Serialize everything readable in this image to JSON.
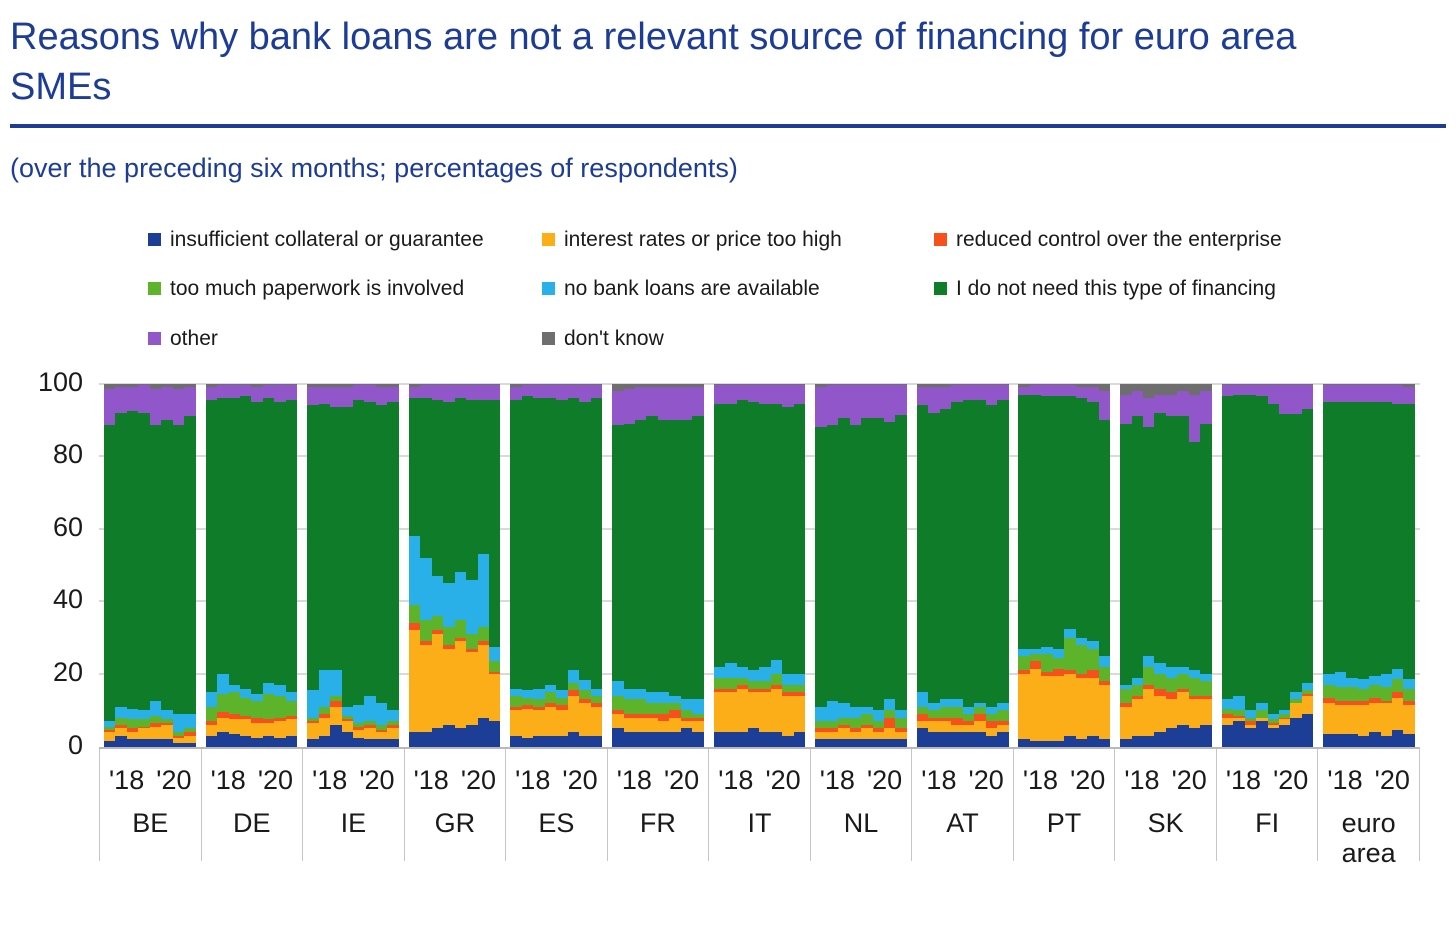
{
  "header": {
    "title_line1": "Reasons why bank loans are not a relevant source of financing for euro area",
    "title_line2": "SMEs",
    "subtitle": "(over the preceding six months; percentages of respondents)"
  },
  "colors": {
    "accent_blue": "#1C3C96",
    "axis_text": "#1A1A1A",
    "gridline": "#D9D9D9",
    "band_border": "#C6C6C6"
  },
  "chart_data": {
    "type": "bar",
    "stacked": true,
    "title": "Reasons why bank loans are not a relevant source of financing for euro area SMEs",
    "subtitle": "(over the preceding six months; percentages of respondents)",
    "ylabel": "percentages of respondents",
    "ylim": [
      0,
      100
    ],
    "yticks": [
      0,
      20,
      40,
      60,
      80,
      100
    ],
    "grid": "horizontal",
    "legend_position": "top",
    "legend_columns": 3,
    "bars_per_group": 8,
    "bar_axis_tick_labels": [
      "'18",
      "'20"
    ],
    "series": [
      {
        "name": "insufficient collateral or guarantee",
        "color": "#1C3E96"
      },
      {
        "name": "interest rates or price too high",
        "color": "#FBAE17"
      },
      {
        "name": "reduced control over the enterprise",
        "color": "#F8501C"
      },
      {
        "name": "too much paperwork is involved",
        "color": "#5DB32A"
      },
      {
        "name": "no bank loans are available",
        "color": "#29B0E8"
      },
      {
        "name": "I do not need this type of financing",
        "color": "#0F7C2A"
      },
      {
        "name": "other",
        "color": "#9156C9"
      },
      {
        "name": "don't know",
        "color": "#6E6E6E"
      }
    ],
    "groups": [
      {
        "label": "BE",
        "bars": [
          [
            1.5,
            2.5,
            0.5,
            1,
            1.5,
            81.5,
            10,
            1.5
          ],
          [
            3,
            2,
            1,
            2,
            3,
            81,
            7,
            1
          ],
          [
            2,
            2,
            1,
            2.5,
            3,
            82,
            6.5,
            1
          ],
          [
            2,
            3,
            0.5,
            2,
            2.5,
            82,
            7.5,
            0.5
          ],
          [
            2,
            3.5,
            1,
            2,
            4,
            76,
            10,
            1.5
          ],
          [
            2,
            4,
            0.5,
            1,
            2.5,
            80,
            9,
            1
          ],
          [
            1,
            1.5,
            0.5,
            1,
            5,
            79.5,
            10,
            1.5
          ],
          [
            1,
            2,
            1,
            1,
            4,
            82,
            8,
            1
          ]
        ]
      },
      {
        "label": "DE",
        "bars": [
          [
            3,
            3,
            1,
            4,
            4,
            80.5,
            3.5,
            1
          ],
          [
            4,
            4,
            1.5,
            5,
            5.5,
            76,
            3.5,
            0.5
          ],
          [
            3.5,
            4,
            1.5,
            6,
            2,
            79,
            3.5,
            0.5
          ],
          [
            3,
            4.5,
            1,
            5,
            2.5,
            80.5,
            3,
            0.5
          ],
          [
            2.5,
            4,
            1.5,
            4.5,
            2,
            80.5,
            4,
            1
          ],
          [
            3,
            3.5,
            1,
            7,
            3,
            78.5,
            3.5,
            0.5
          ],
          [
            2.5,
            4.5,
            1,
            6,
            3,
            78,
            4.5,
            0.5
          ],
          [
            3,
            4.5,
            1,
            4,
            2.5,
            80.5,
            4,
            0.5
          ]
        ]
      },
      {
        "label": "IE",
        "bars": [
          [
            2,
            4.5,
            0.5,
            1,
            7.5,
            78.5,
            5,
            1
          ],
          [
            3,
            5,
            1,
            2,
            10,
            73.5,
            4.5,
            1
          ],
          [
            6,
            5,
            1.5,
            1.5,
            7,
            72.5,
            5.5,
            1
          ],
          [
            4,
            3,
            0.5,
            1,
            2.5,
            82.5,
            5.5,
            1
          ],
          [
            2.5,
            2,
            1,
            1,
            5,
            84,
            4,
            0.5
          ],
          [
            2,
            3,
            1,
            1,
            7,
            81,
            4.5,
            0.5
          ],
          [
            2,
            2,
            0.5,
            1.5,
            6,
            82,
            5,
            1
          ],
          [
            2,
            3,
            1,
            1,
            3,
            85,
            4,
            1
          ]
        ]
      },
      {
        "label": "GR",
        "bars": [
          [
            4,
            28,
            2,
            5,
            19,
            38,
            3,
            1
          ],
          [
            4,
            24,
            1,
            6,
            17,
            44,
            3.5,
            0.5
          ],
          [
            5,
            26,
            1,
            4,
            11,
            48.5,
            4,
            0.5
          ],
          [
            6,
            21,
            1,
            5,
            12,
            50,
            4.5,
            0.5
          ],
          [
            5,
            24,
            1,
            5,
            13,
            48,
            3.5,
            0.5
          ],
          [
            6,
            20,
            1,
            4,
            15,
            49.5,
            4,
            0.5
          ],
          [
            8,
            20,
            1,
            4,
            20,
            42.5,
            4,
            0.5
          ],
          [
            7,
            13,
            0.5,
            3,
            4,
            68,
            4,
            0.5
          ]
        ]
      },
      {
        "label": "ES",
        "bars": [
          [
            3,
            7,
            1,
            3,
            2,
            79.5,
            3.5,
            1
          ],
          [
            2.5,
            8,
            1,
            2,
            2,
            81,
            3,
            0.5
          ],
          [
            3,
            7,
            1,
            2,
            3,
            80,
            3.5,
            0.5
          ],
          [
            3,
            8,
            1,
            3,
            2,
            79,
            3.5,
            0.5
          ],
          [
            3,
            7,
            1.5,
            2,
            2,
            80,
            4,
            0.5
          ],
          [
            4,
            10,
            1.5,
            2,
            3.5,
            75,
            3.5,
            0.5
          ],
          [
            3,
            9,
            1,
            2.5,
            3,
            76.5,
            4.5,
            0.5
          ],
          [
            3,
            8,
            1,
            2,
            2,
            80,
            3.5,
            0.5
          ]
        ]
      },
      {
        "label": "FR",
        "bars": [
          [
            5,
            4,
            1,
            4,
            4,
            70.5,
            9.5,
            2
          ],
          [
            4,
            4,
            1,
            4,
            3,
            73,
            9.5,
            1.5
          ],
          [
            4,
            4,
            1,
            4,
            3,
            74,
            9,
            1
          ],
          [
            4,
            4,
            1,
            3,
            3,
            76,
            8,
            1
          ],
          [
            4,
            3,
            2,
            3,
            3,
            75,
            9,
            1
          ],
          [
            4,
            4,
            2,
            2,
            2,
            76,
            9,
            1
          ],
          [
            5,
            2,
            1,
            2,
            3,
            77,
            9,
            1
          ],
          [
            4,
            3,
            1,
            1,
            4,
            78,
            8,
            1
          ]
        ]
      },
      {
        "label": "IT",
        "bars": [
          [
            4,
            11,
            1,
            3,
            3,
            72.5,
            5,
            0.5
          ],
          [
            4,
            11,
            1,
            3,
            4,
            71.5,
            5,
            0.5
          ],
          [
            4,
            12,
            1,
            2,
            3,
            73.5,
            4,
            0.5
          ],
          [
            5,
            10,
            1,
            2,
            3,
            74,
            4.5,
            0.5
          ],
          [
            4,
            11,
            1,
            2,
            4,
            72.5,
            5,
            0.5
          ],
          [
            4,
            12,
            1,
            3,
            4,
            70.5,
            5,
            0.5
          ],
          [
            3,
            11,
            1,
            2,
            3,
            73.5,
            6,
            0.5
          ],
          [
            4,
            10,
            1,
            2,
            3,
            74.5,
            5,
            0.5
          ]
        ]
      },
      {
        "label": "NL",
        "bars": [
          [
            2,
            2,
            1,
            2,
            4,
            77,
            11,
            1
          ],
          [
            2,
            2,
            1,
            2,
            5.5,
            76,
            11,
            0.5
          ],
          [
            2,
            3,
            1,
            2,
            4,
            78.5,
            9,
            0.5
          ],
          [
            2,
            2,
            1,
            3,
            3,
            77.5,
            11,
            0.5
          ],
          [
            2,
            3,
            1,
            3,
            2,
            79.5,
            9,
            0.5
          ],
          [
            2,
            2,
            1,
            2,
            3,
            80.5,
            9,
            0.5
          ],
          [
            2,
            3,
            3,
            2,
            3,
            76.5,
            10,
            0.5
          ],
          [
            2,
            2,
            1,
            3,
            2,
            81.5,
            8,
            0.5
          ]
        ]
      },
      {
        "label": "AT",
        "bars": [
          [
            5,
            2,
            2,
            2,
            4,
            79,
            5,
            1
          ],
          [
            4,
            3,
            1,
            2,
            2,
            80,
            7,
            1
          ],
          [
            4,
            3,
            1,
            3,
            2,
            80,
            6,
            1
          ],
          [
            4,
            2,
            2,
            3,
            2,
            82,
            4.5,
            0.5
          ],
          [
            4,
            2,
            1,
            2,
            2,
            84.5,
            4,
            0.5
          ],
          [
            4,
            3,
            2,
            2,
            1,
            83.5,
            4,
            0.5
          ],
          [
            3,
            2,
            2,
            2,
            2,
            83,
            5.5,
            0.5
          ],
          [
            4,
            2,
            1,
            3,
            2,
            83.5,
            4,
            0.5
          ]
        ]
      },
      {
        "label": "PT",
        "bars": [
          [
            2,
            18,
            1,
            4,
            2,
            70,
            2,
            1
          ],
          [
            1.5,
            20,
            2,
            2,
            1.5,
            70,
            2.5,
            0.5
          ],
          [
            1.5,
            18,
            1,
            5,
            2,
            69,
            3,
            0.5
          ],
          [
            1.5,
            18,
            2,
            3,
            2.5,
            69.5,
            3,
            0.5
          ],
          [
            3,
            17,
            1,
            9,
            2.5,
            64,
            3,
            0.5
          ],
          [
            2,
            17,
            1,
            8,
            2,
            66,
            3,
            1
          ],
          [
            3,
            16,
            2,
            6,
            2,
            66,
            4,
            1
          ],
          [
            2,
            15,
            1,
            4,
            3,
            65,
            8,
            2
          ]
        ]
      },
      {
        "label": "SK",
        "bars": [
          [
            2,
            9,
            1,
            4,
            1,
            72,
            8,
            3
          ],
          [
            3,
            10,
            1,
            3,
            2,
            72,
            7,
            2
          ],
          [
            3,
            13,
            1,
            5,
            3,
            63,
            8,
            4
          ],
          [
            4,
            10,
            2,
            4,
            3,
            69,
            5,
            3
          ],
          [
            5,
            8,
            2,
            4,
            3,
            69,
            6,
            3
          ],
          [
            6,
            9,
            1,
            4,
            2,
            69,
            7,
            2
          ],
          [
            5,
            8,
            1,
            5,
            2,
            63,
            13,
            3
          ],
          [
            6,
            7,
            1,
            4,
            2,
            69,
            9,
            2
          ]
        ]
      },
      {
        "label": "FI",
        "bars": [
          [
            6,
            2,
            1,
            1.5,
            2.5,
            83.5,
            3,
            0.5
          ],
          [
            7,
            1,
            0.5,
            1.5,
            4,
            83,
            2.5,
            0.5
          ],
          [
            5,
            1,
            1,
            1,
            2,
            87,
            2.5,
            0.5
          ],
          [
            7,
            1,
            0,
            2,
            2,
            84.5,
            3,
            0.5
          ],
          [
            5,
            1,
            0.5,
            1,
            1.5,
            85.5,
            5,
            0.5
          ],
          [
            6,
            1.5,
            0.5,
            1,
            1,
            81.5,
            8,
            0.5
          ],
          [
            8,
            4,
            0,
            1,
            2,
            76.5,
            8,
            0.5
          ],
          [
            9,
            5,
            0.5,
            1,
            2,
            75.5,
            6.5,
            0.5
          ]
        ]
      },
      {
        "label": "euro area",
        "bars": [
          [
            3.5,
            8.5,
            1.5,
            3.5,
            3,
            75,
            4.5,
            0.5
          ],
          [
            3.5,
            8,
            1,
            4,
            4,
            74.5,
            4.5,
            0.5
          ],
          [
            3.5,
            8,
            1,
            4,
            2.5,
            76,
            4.5,
            0.5
          ],
          [
            3,
            8.5,
            1,
            3.5,
            2.5,
            76.5,
            4.5,
            0.5
          ],
          [
            4,
            8,
            1.5,
            3.5,
            2.5,
            75.5,
            4.5,
            0.5
          ],
          [
            3,
            9,
            0.5,
            4,
            3.5,
            75,
            4.5,
            0.5
          ],
          [
            4.5,
            9,
            1.5,
            3.5,
            3,
            73,
            5,
            0.5
          ],
          [
            3.5,
            8,
            1,
            3.5,
            2.5,
            76,
            4.5,
            1
          ]
        ]
      }
    ]
  }
}
